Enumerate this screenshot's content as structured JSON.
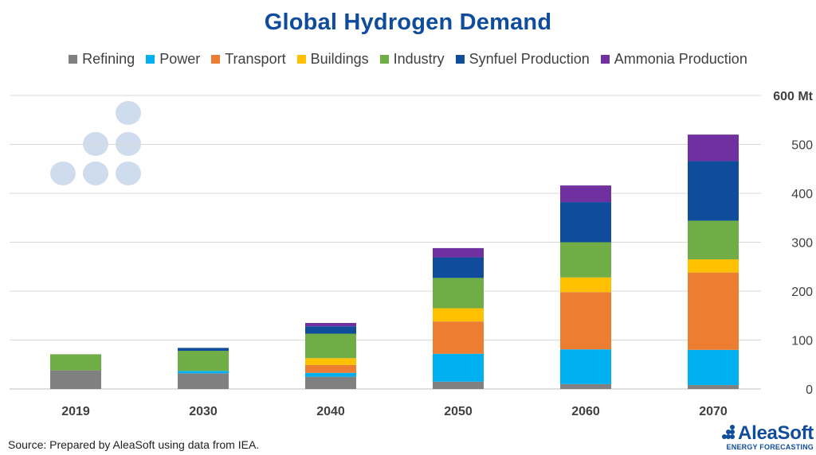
{
  "source_note": "Source: Prepared by AleaSoft using data from IEA.",
  "logo": {
    "name": "AleaSoft",
    "tagline": "ENERGY FORECASTING"
  },
  "chart_data": {
    "type": "bar",
    "stacked": true,
    "title": "Global Hydrogen Demand",
    "categories": [
      "2019",
      "2030",
      "2040",
      "2050",
      "2060",
      "2070"
    ],
    "ylim": [
      0,
      600
    ],
    "yticks": [
      0,
      100,
      200,
      300,
      400,
      500,
      600
    ],
    "ytick_labels": [
      "0",
      "100",
      "200",
      "300",
      "400",
      "500",
      "600 Mt"
    ],
    "y_axis_position": "right",
    "grid": true,
    "legend_position": "top",
    "series": [
      {
        "name": "Refining",
        "color": "#808080",
        "values": [
          38,
          32,
          25,
          15,
          10,
          8
        ]
      },
      {
        "name": "Power",
        "color": "#00b0f0",
        "values": [
          0,
          5,
          8,
          57,
          71,
          72
        ]
      },
      {
        "name": "Transport",
        "color": "#ed7d31",
        "values": [
          0,
          0,
          16,
          66,
          117,
          158
        ]
      },
      {
        "name": "Buildings",
        "color": "#ffc000",
        "values": [
          0,
          0,
          14,
          27,
          30,
          27
        ]
      },
      {
        "name": "Industry",
        "color": "#70ad47",
        "values": [
          33,
          41,
          50,
          62,
          72,
          79
        ]
      },
      {
        "name": "Synfuel Production",
        "color": "#0f4c9b",
        "values": [
          0,
          6,
          15,
          42,
          82,
          122
        ]
      },
      {
        "name": "Ammonia Production",
        "color": "#7030a0",
        "values": [
          0,
          0,
          7,
          19,
          34,
          54
        ]
      }
    ]
  }
}
